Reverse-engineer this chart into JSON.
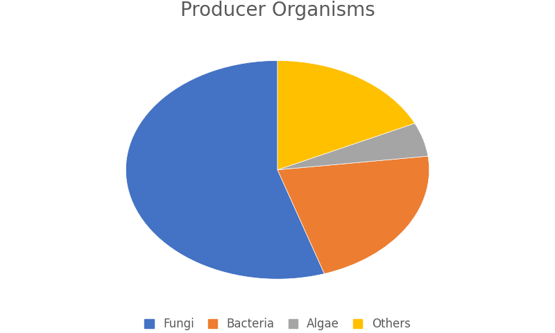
{
  "title": "Producer Organisms",
  "title_fontsize": 20,
  "title_color": "#595959",
  "labels": [
    "Fungi",
    "Bacteria",
    "Algae",
    "Others"
  ],
  "values": [
    55,
    22,
    5,
    18
  ],
  "colors": [
    "#4472C4",
    "#ED7D31",
    "#A5A5A5",
    "#FFC000"
  ],
  "startangle": 90,
  "background_color": "#FFFFFF",
  "legend_fontsize": 12,
  "aspect_ratio": 0.72
}
